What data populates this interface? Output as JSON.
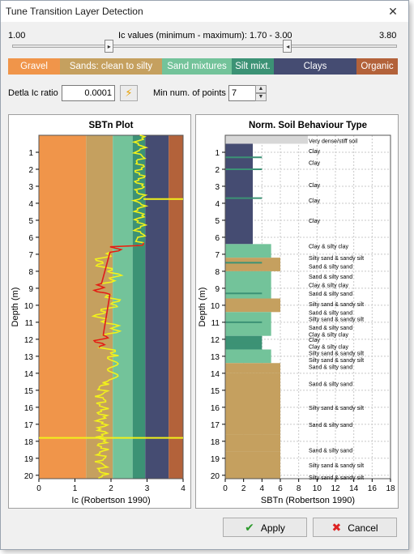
{
  "window": {
    "title": "Tune Transition Layer Detection"
  },
  "slider": {
    "min_label": "1.00",
    "max_label": "3.80",
    "caption": "Ic values (minimum - maximum): 1.70 - 3.00",
    "range_min": 1.0,
    "range_max": 3.8,
    "value_low": 1.7,
    "value_high": 3.0
  },
  "zones": [
    {
      "label": "Gravel",
      "color": "#f0954a",
      "width": 64
    },
    {
      "label": "Sands: clean to silty",
      "color": "#c5a05f",
      "width": 126
    },
    {
      "label": "Sand mixtures",
      "color": "#73c39a",
      "width": 86
    },
    {
      "label": "Silt mixt.",
      "color": "#3c9275",
      "width": 52
    },
    {
      "label": "Clays",
      "color": "#454c72",
      "width": 102
    },
    {
      "label": "Organic",
      "color": "#b3623a",
      "width": 51
    }
  ],
  "controls": {
    "delta_label": "Detla Ic ratio",
    "delta_value": "0.0001",
    "minpts_label": "Min num. of points",
    "minpts_value": "7"
  },
  "plot1": {
    "title": "SBTn Plot",
    "ylabel": "Depth (m)",
    "xlabel": "Ic (Robertson 1990)",
    "y_ticks": [
      "1",
      "2",
      "3",
      "4",
      "5",
      "6",
      "7",
      "8",
      "9",
      "10",
      "11",
      "12",
      "13",
      "14",
      "15",
      "16",
      "17",
      "18",
      "19",
      "20"
    ],
    "x_ticks": [
      "0",
      "1",
      "2",
      "3",
      "4"
    ]
  },
  "plot2": {
    "title": "Norm. Soil Behaviour Type",
    "ylabel": "Depth (m)",
    "xlabel": "SBTn (Robertson 1990)",
    "y_ticks": [
      "1",
      "2",
      "3",
      "4",
      "5",
      "6",
      "7",
      "8",
      "9",
      "10",
      "11",
      "12",
      "13",
      "14",
      "15",
      "16",
      "17",
      "18",
      "19",
      "20"
    ],
    "x_ticks": [
      "0",
      "2",
      "4",
      "6",
      "8",
      "10",
      "12",
      "14",
      "16",
      "18"
    ],
    "layer_labels": [
      "Very dense/stiff soil",
      "Clay",
      "Clay",
      "Clay",
      "Clay",
      "Clay",
      "Clay & silty clay",
      "Silty sand & sandy silt",
      "Sand & silty sand",
      "Sand & silty sand",
      "Clay & silty clay",
      "Sand & silty sand",
      "Silty sand & sandy silt",
      "Sand & silty sand",
      "Silty sand & sandy silt",
      "Sand & silty sand",
      "Clay & silty clay",
      "Clay",
      "Clay & silty clay",
      "Silty sand & sandy silt",
      "Silty sand & sandy silt",
      "Sand & silty sand",
      "Sand & silty sand",
      "Silty sand & sandy silt",
      "Sand & silty sand",
      "Sand & silty sand",
      "Silty sand & sandy silt",
      "Silty sand & sandy silt"
    ]
  },
  "buttons": {
    "apply": "Apply",
    "cancel": "Cancel"
  }
}
